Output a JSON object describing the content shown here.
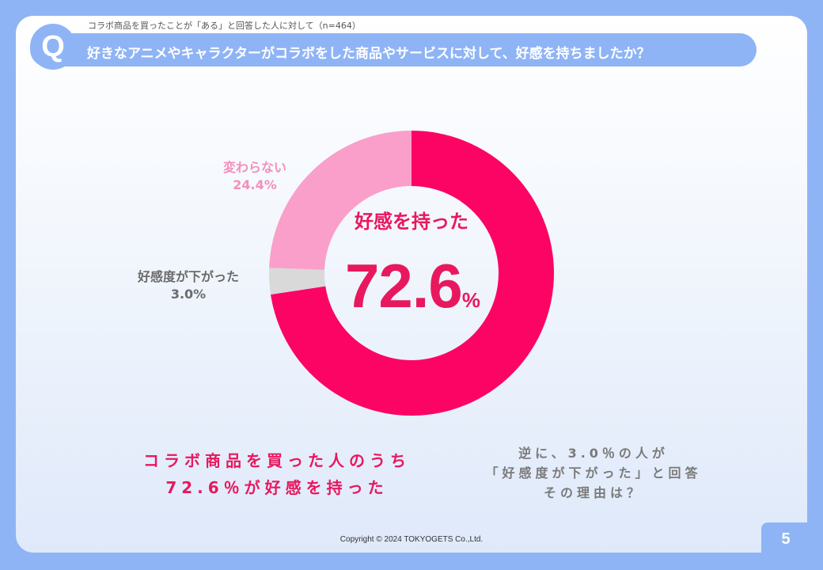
{
  "question": {
    "badge": "Q",
    "subtitle": "コラボ商品を買ったことが「ある」と回答した人に対して（n=464）",
    "text": "好きなアニメやキャラクターがコラボをした商品やサービスに対して、好感を持ちましたか？"
  },
  "chart_data": {
    "type": "pie",
    "style": "donut",
    "slices": [
      {
        "label": "好感を持った",
        "value": 72.6,
        "value_text": "72.6",
        "unit": "%",
        "color": "#fc0464"
      },
      {
        "label": "好感度が下がった",
        "value": 3.0,
        "value_text": "3.0%",
        "color": "#d9d9d9"
      },
      {
        "label": "変わらない",
        "value": 24.4,
        "value_text": "24.4%",
        "color": "#f99fc9"
      }
    ],
    "start": "top",
    "direction": "clockwise"
  },
  "summary_left": [
    "コラボ商品を買った人のうち",
    "72.6％が好感を持った"
  ],
  "summary_right": [
    "逆に、3.0％の人が",
    "「好感度が下がった」と回答",
    "その理由は？"
  ],
  "copyright": "Copyright © 2024 TOKYOGETS Co.,Ltd.",
  "page_number": "5",
  "colors": {
    "background": "#8fb4f5",
    "accent_pink": "#e8185e",
    "text_gray": "#6b6b6b"
  }
}
